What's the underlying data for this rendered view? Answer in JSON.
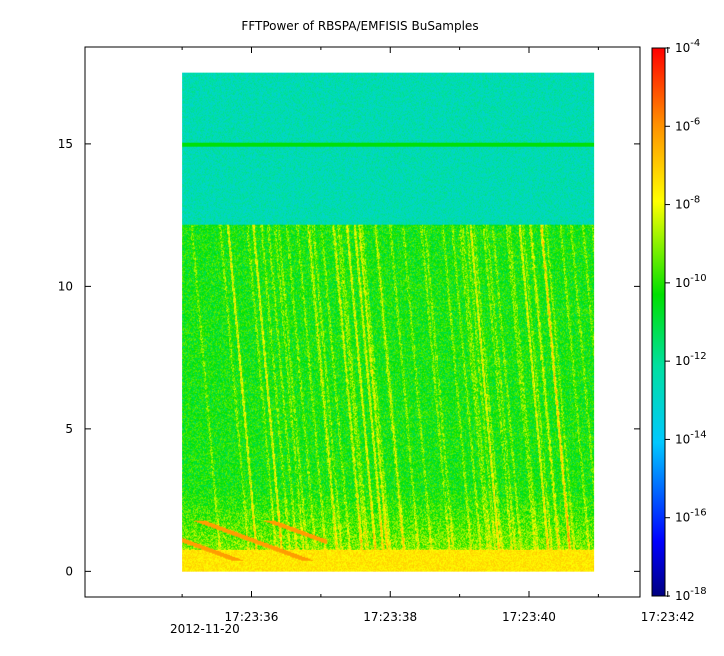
{
  "chart_data": {
    "type": "heatmap",
    "title": "FFTPower of RBSPA/EMFISIS  BuSamples",
    "xlabel": "",
    "ylabel": "",
    "x_ticks": [
      {
        "t": 36,
        "label": "17:23:36"
      },
      {
        "t": 38,
        "label": "17:23:38"
      },
      {
        "t": 40,
        "label": "17:23:40"
      },
      {
        "t": 42,
        "label": "17:23:42"
      }
    ],
    "x_minor_ticks": [
      35,
      37,
      39,
      41
    ],
    "x_date_label": "2012-11-20",
    "x_range_seconds": [
      33.6,
      41.6
    ],
    "data_x_range_seconds": [
      35.0,
      40.94
    ],
    "y_ticks": [
      0,
      5,
      10,
      15
    ],
    "ylim": [
      -0.9,
      18.4
    ],
    "data_y_range": [
      0,
      17.5
    ],
    "colorbar": {
      "scale": "log",
      "range": [
        1e-18,
        0.0001
      ],
      "ticks": [
        {
          "exp": -4,
          "base": "10",
          "sup": "-4"
        },
        {
          "exp": -6,
          "base": "10",
          "sup": "-6"
        },
        {
          "exp": -8,
          "base": "10",
          "sup": "-8"
        },
        {
          "exp": -10,
          "base": "10",
          "sup": "-10"
        },
        {
          "exp": -12,
          "base": "10",
          "sup": "-12"
        },
        {
          "exp": -14,
          "base": "10",
          "sup": "-14"
        },
        {
          "exp": -16,
          "base": "10",
          "sup": "-16"
        },
        {
          "exp": -18,
          "base": "10",
          "sup": "-18"
        }
      ],
      "colors": [
        "#000080",
        "#0000ff",
        "#00c8ff",
        "#00e0a0",
        "#00e000",
        "#ffff00",
        "#ff9000",
        "#ff0000"
      ]
    },
    "features": {
      "upper_band_y": [
        12.2,
        17.5
      ],
      "upper_band_log_power": -12.5,
      "lower_band_log_power": -10.3,
      "low_freq_log_power": -7.5,
      "line_at_y": 15.0
    }
  }
}
